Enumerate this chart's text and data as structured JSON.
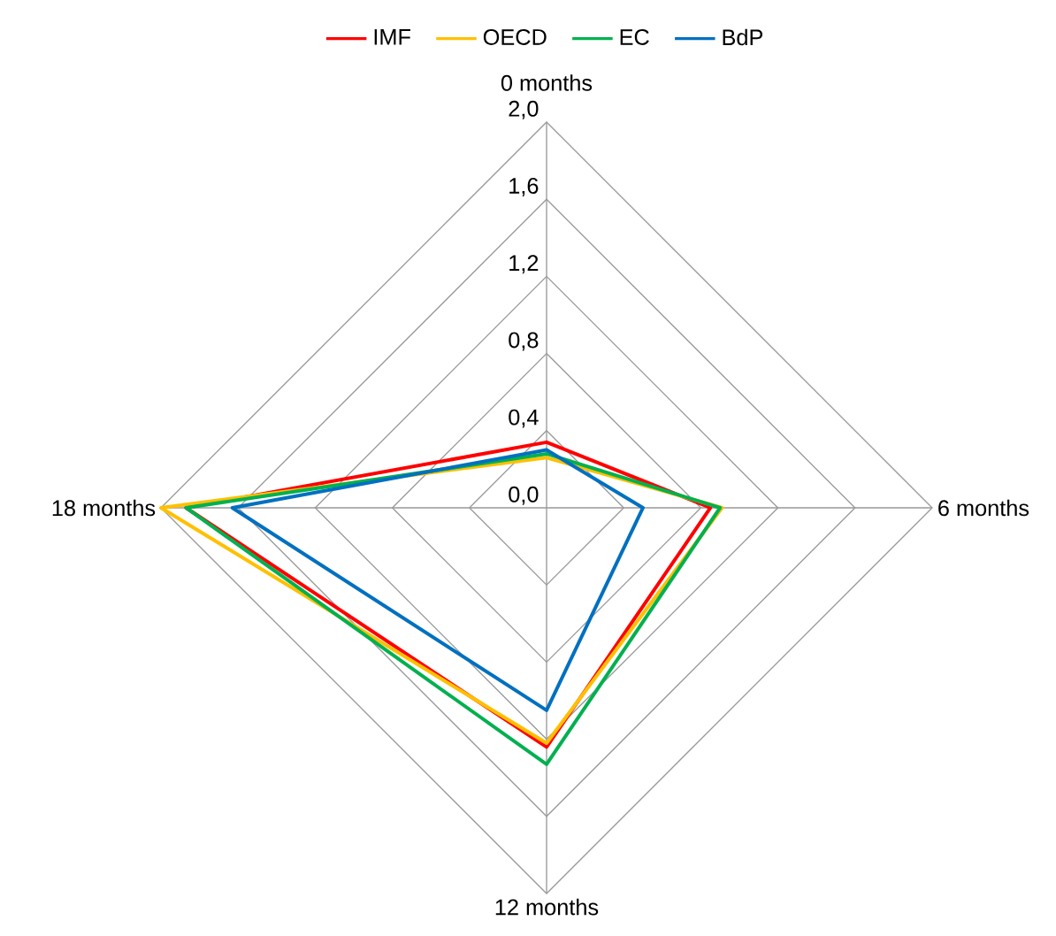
{
  "chart_data": {
    "type": "radar",
    "categories": [
      "0 months",
      "6 months",
      "12 months",
      "18 months"
    ],
    "ylim": [
      0,
      2.0
    ],
    "yticks": [
      {
        "value": 0,
        "label": "0,0"
      },
      {
        "value": 0.4,
        "label": "0,4"
      },
      {
        "value": 0.8,
        "label": "0,8"
      },
      {
        "value": 1.2,
        "label": "1,2"
      },
      {
        "value": 1.6,
        "label": "1,6"
      },
      {
        "value": 2.0,
        "label": "2,0"
      }
    ],
    "grid": true,
    "legend": "top",
    "marker": "none",
    "line_style": "solid",
    "series": [
      {
        "name": "IMF",
        "color": "#ff0000",
        "values": [
          0.34,
          0.85,
          1.24,
          1.87
        ]
      },
      {
        "name": "OECD",
        "color": "#ffc000",
        "values": [
          0.26,
          0.91,
          1.22,
          2.0
        ]
      },
      {
        "name": "EC",
        "color": "#00b050",
        "values": [
          0.28,
          0.9,
          1.33,
          1.87
        ]
      },
      {
        "name": "BdP",
        "color": "#0070c0",
        "values": [
          0.3,
          0.5,
          1.05,
          1.63
        ]
      }
    ]
  }
}
